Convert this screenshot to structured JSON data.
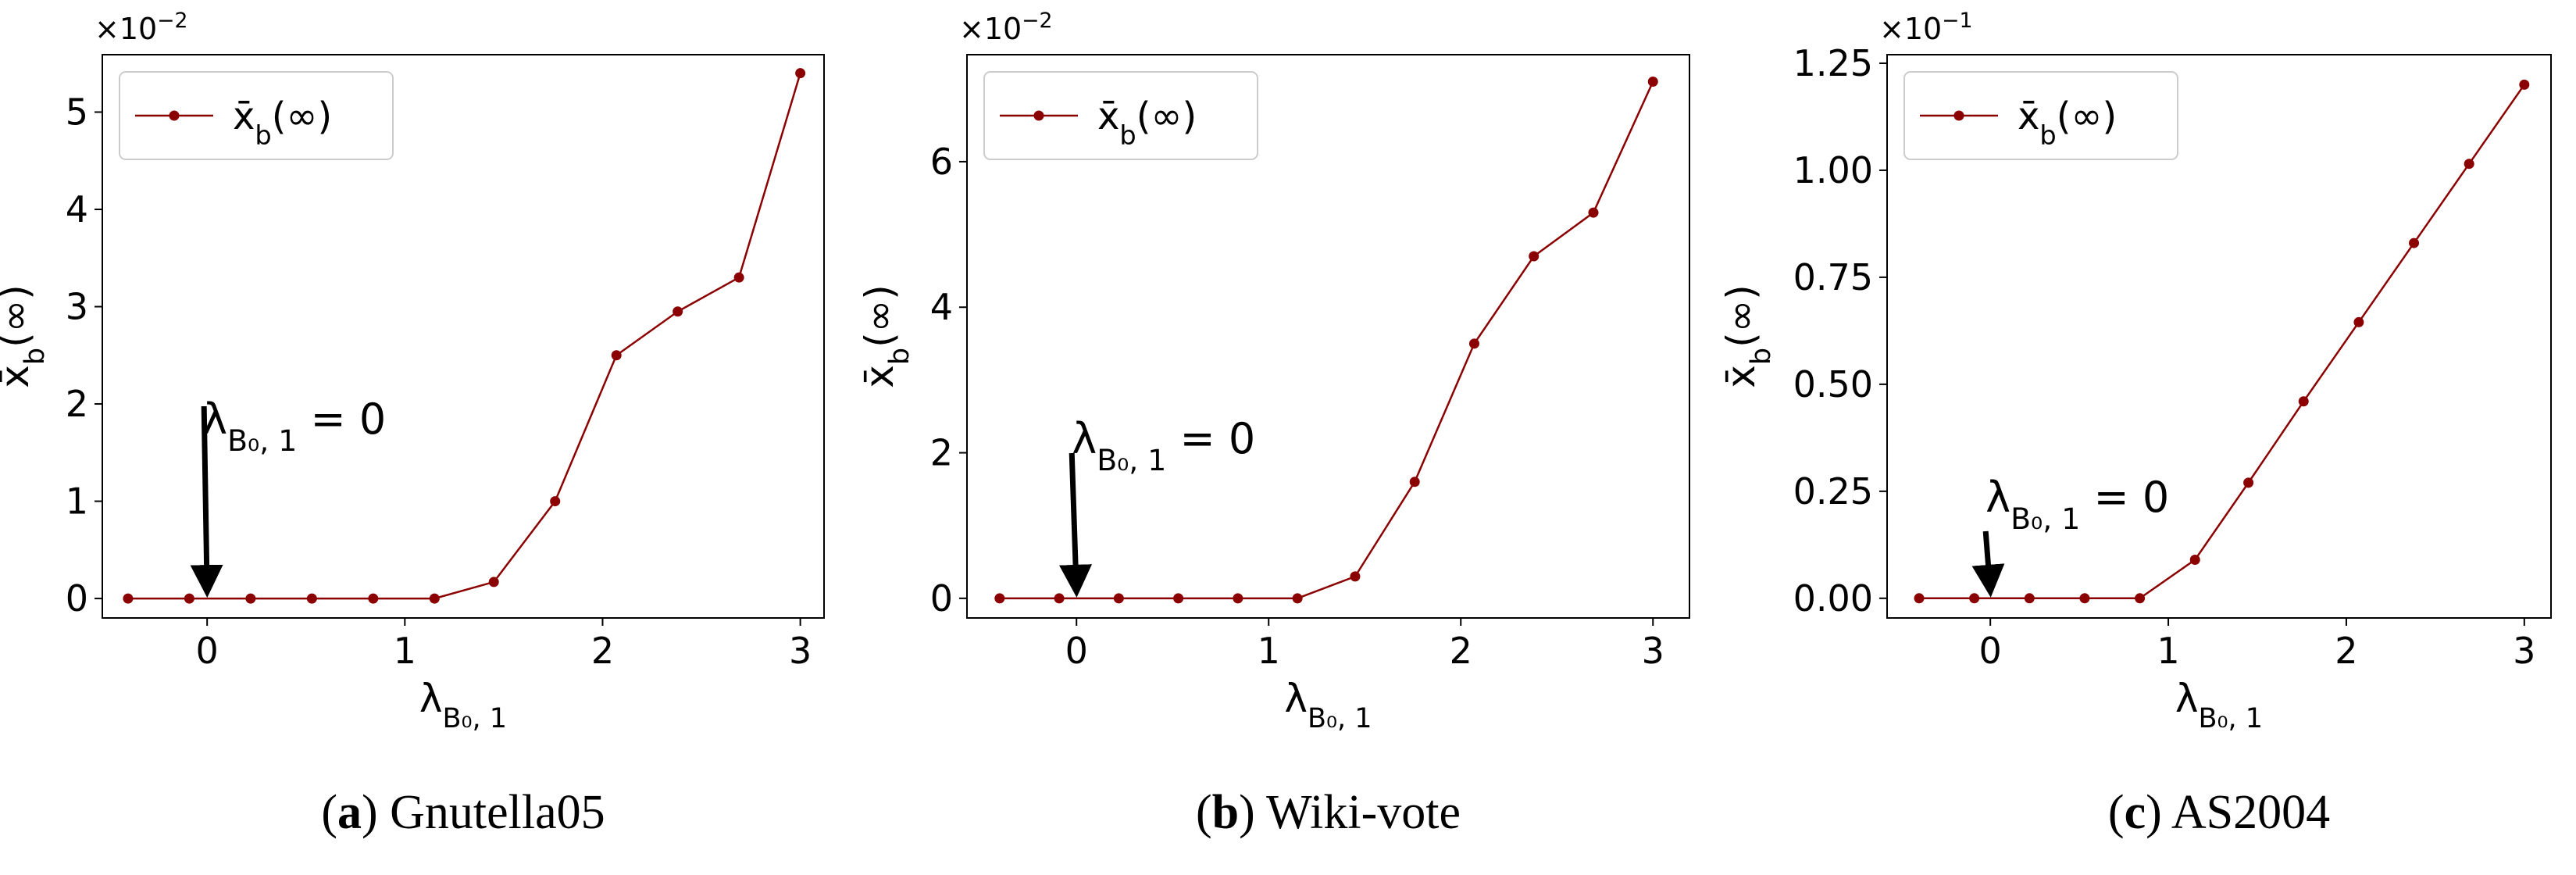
{
  "chart_data": [
    {
      "type": "line",
      "x": [
        -0.4,
        -0.09,
        0.22,
        0.53,
        0.84,
        1.15,
        1.45,
        1.76,
        2.07,
        2.38,
        2.69,
        3.0
      ],
      "series": [
        {
          "name": [
            "x̄",
            "b",
            "(∞)"
          ],
          "color": "#8b0000",
          "values": [
            0,
            0,
            0,
            0,
            0,
            0,
            0.17,
            1.0,
            2.5,
            2.95,
            3.3,
            5.4
          ]
        }
      ],
      "xlim": [
        -0.53,
        3.12
      ],
      "ylim": [
        -0.2,
        5.59
      ],
      "xticks": [
        0,
        1,
        2,
        3
      ],
      "yticks": [
        0,
        1,
        2,
        3,
        4,
        5
      ],
      "xlabel": [
        "λ",
        "B₀, 1"
      ],
      "ylabel": [
        "x̄",
        "b",
        "(∞)"
      ],
      "offset_text": [
        "×10",
        "−2"
      ],
      "annotation": [
        "λ",
        "B₀, 1",
        " = 0"
      ],
      "legend": "upper left",
      "grid": false,
      "caption": [
        "(",
        "a",
        ") Gnutella05"
      ]
    },
    {
      "type": "line",
      "x": [
        -0.4,
        -0.09,
        0.22,
        0.53,
        0.84,
        1.15,
        1.45,
        1.76,
        2.07,
        2.38,
        2.69,
        3.0
      ],
      "series": [
        {
          "name": [
            "x̄",
            "b",
            "(∞)"
          ],
          "color": "#8b0000",
          "values": [
            0,
            0,
            0,
            0,
            0,
            0,
            0.3,
            1.6,
            3.5,
            4.7,
            5.3,
            7.1
          ]
        }
      ],
      "xlim": [
        -0.57,
        3.19
      ],
      "ylim": [
        -0.27,
        7.47
      ],
      "xticks": [
        0,
        1,
        2,
        3
      ],
      "yticks": [
        0,
        2,
        4,
        6
      ],
      "xlabel": [
        "λ",
        "B₀, 1"
      ],
      "ylabel": [
        "x̄",
        "b",
        "(∞)"
      ],
      "offset_text": [
        "×10",
        "−2"
      ],
      "annotation": [
        "λ",
        "B₀, 1",
        " = 0"
      ],
      "legend": "upper left",
      "grid": false,
      "caption": [
        "(",
        "b",
        ") Wiki-vote"
      ]
    },
    {
      "type": "line",
      "x": [
        -0.4,
        -0.09,
        0.22,
        0.53,
        0.84,
        1.15,
        1.45,
        1.76,
        2.07,
        2.38,
        2.69,
        3.0
      ],
      "series": [
        {
          "name": [
            "x̄",
            "b",
            "(∞)"
          ],
          "color": "#8b0000",
          "values": [
            0,
            0,
            0,
            0,
            0,
            0.09,
            0.27,
            0.46,
            0.645,
            0.83,
            1.015,
            1.2
          ]
        }
      ],
      "xlim": [
        -0.58,
        3.15
      ],
      "ylim": [
        -0.046,
        1.27
      ],
      "xticks": [
        0,
        1,
        2,
        3
      ],
      "yticks": [
        {
          "value": 0,
          "label": "0.00"
        },
        {
          "value": 0.25,
          "label": "0.25"
        },
        {
          "value": 0.5,
          "label": "0.50"
        },
        {
          "value": 0.75,
          "label": "0.75"
        },
        {
          "value": 1,
          "label": "1.00"
        },
        {
          "value": 1.25,
          "label": "1.25"
        }
      ],
      "xlabel": [
        "λ",
        "B₀, 1"
      ],
      "ylabel": [
        "x̄",
        "b",
        "(∞)"
      ],
      "offset_text": [
        "×10",
        "−1"
      ],
      "annotation": [
        "λ",
        "B₀, 1",
        " = 0"
      ],
      "legend": "upper left",
      "grid": false,
      "caption": [
        "(",
        "c",
        ") AS2004"
      ]
    }
  ]
}
